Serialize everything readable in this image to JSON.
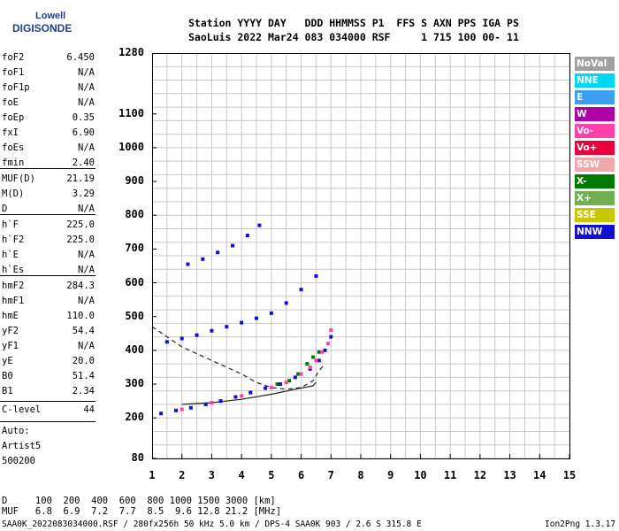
{
  "logo": {
    "line1": "Lowell",
    "line2": "DIGISONDE"
  },
  "header": {
    "line1": "Station YYYY DAY   DDD HHMMSS P1  FFS S AXN PPS IGA PS",
    "line2": "SaoLuis 2022 Mar24 083 034000 RSF     1 715 100 00- 11"
  },
  "params": [
    {
      "label": "foF2",
      "value": "6.450"
    },
    {
      "label": "foF1",
      "value": "N/A"
    },
    {
      "label": "foF1p",
      "value": "N/A"
    },
    {
      "label": "foE",
      "value": "N/A"
    },
    {
      "label": "foEp",
      "value": "0.35"
    },
    {
      "label": "fxI",
      "value": "6.90"
    },
    {
      "label": "foEs",
      "value": "N/A"
    },
    {
      "label": "fmin",
      "value": "2.40"
    },
    {
      "label": "MUF(D)",
      "value": "21.19"
    },
    {
      "label": "M(D)",
      "value": "3.29"
    },
    {
      "label": "D",
      "value": "N/A"
    },
    {
      "label": "h`F",
      "value": "225.0"
    },
    {
      "label": "h`F2",
      "value": "225.0"
    },
    {
      "label": "h`E",
      "value": "N/A"
    },
    {
      "label": "h`Es",
      "value": "N/A"
    },
    {
      "label": "hmF2",
      "value": "284.3"
    },
    {
      "label": "hmF1",
      "value": "N/A"
    },
    {
      "label": "hmE",
      "value": "110.0"
    },
    {
      "label": "yF2",
      "value": "54.4"
    },
    {
      "label": "yF1",
      "value": "N/A"
    },
    {
      "label": "yE",
      "value": "20.0"
    },
    {
      "label": "B0",
      "value": "51.4"
    },
    {
      "label": "B1",
      "value": "2.34"
    },
    {
      "label": "C-level",
      "value": "44"
    }
  ],
  "autoscale": {
    "line1": "Auto:",
    "line2": "Artist5",
    "line3": "500200"
  },
  "legend": [
    {
      "label": "NoVal",
      "color": "#a0a0a0"
    },
    {
      "label": "NNE",
      "color": "#00d8f0"
    },
    {
      "label": "E",
      "color": "#3aa0f0"
    },
    {
      "label": "W",
      "color": "#b000a8"
    },
    {
      "label": "Vo-",
      "color": "#ff40a8"
    },
    {
      "label": "Vo+",
      "color": "#e8003a"
    },
    {
      "label": "SSW",
      "color": "#f0a8a8"
    },
    {
      "label": "X-",
      "color": "#007a00"
    },
    {
      "label": "X+",
      "color": "#70b050"
    },
    {
      "label": "SSE",
      "color": "#c8c800"
    },
    {
      "label": "NNW",
      "color": "#1010d0"
    }
  ],
  "mufTable": {
    "line1": "D     100  200  400  600  800 1000 1500 3000 [km]",
    "line2": "MUF   6.8  6.9  7.2  7.7  8.5  9.6 12.8 21.2 [MHz]"
  },
  "footer": "SAA0K_2022083034000.RSF / 280fx256h 50 kHz 5.0 km / DPS-4 SAA0K 903 / 2.6 S 315.8 E",
  "version": "Ion2Png 1.3.17",
  "chart_data": {
    "type": "scatter",
    "xlabel": "",
    "ylabel": "",
    "xlim": [
      1,
      15
    ],
    "ylim": [
      80,
      1280
    ],
    "xticks": [
      1,
      2,
      3,
      4,
      5,
      6,
      7,
      8,
      9,
      10,
      11,
      12,
      13,
      14,
      15
    ],
    "yticks": [
      80,
      200,
      300,
      400,
      500,
      600,
      700,
      800,
      900,
      1000,
      1100,
      1280
    ],
    "series": [
      {
        "name": "X-",
        "color": "#007a00",
        "points": [
          [
            5.2,
            300
          ],
          [
            5.6,
            310
          ],
          [
            5.9,
            330
          ],
          [
            6.2,
            360
          ],
          [
            6.4,
            380
          ],
          [
            6.6,
            395
          ]
        ]
      },
      {
        "name": "NNW",
        "color": "#1010d0",
        "points": [
          [
            1.3,
            213
          ],
          [
            1.8,
            222
          ],
          [
            2.3,
            230
          ],
          [
            2.8,
            240
          ],
          [
            3.3,
            250
          ],
          [
            3.8,
            262
          ],
          [
            4.3,
            275
          ],
          [
            4.8,
            288
          ],
          [
            5.3,
            300
          ],
          [
            5.8,
            320
          ],
          [
            6.3,
            345
          ],
          [
            6.6,
            370
          ],
          [
            6.8,
            400
          ],
          [
            7.0,
            440
          ],
          [
            1.5,
            425
          ],
          [
            2.0,
            435
          ],
          [
            2.5,
            445
          ],
          [
            3.0,
            458
          ],
          [
            3.5,
            470
          ],
          [
            4.0,
            482
          ],
          [
            4.5,
            495
          ],
          [
            5.0,
            510
          ],
          [
            5.5,
            540
          ],
          [
            6.0,
            580
          ],
          [
            6.5,
            620
          ],
          [
            2.2,
            655
          ],
          [
            2.7,
            670
          ],
          [
            3.2,
            690
          ],
          [
            3.7,
            710
          ],
          [
            4.2,
            740
          ],
          [
            4.6,
            770
          ]
        ]
      },
      {
        "name": "Vo-",
        "color": "#ff40a8",
        "points": [
          [
            2.0,
            225
          ],
          [
            3.0,
            245
          ],
          [
            4.0,
            265
          ],
          [
            5.0,
            290
          ],
          [
            5.5,
            305
          ],
          [
            6.0,
            330
          ],
          [
            6.3,
            350
          ],
          [
            6.5,
            370
          ],
          [
            6.7,
            395
          ],
          [
            6.9,
            420
          ],
          [
            7.0,
            460
          ]
        ]
      }
    ],
    "curves": [
      {
        "name": "N(h) profile",
        "points": [
          [
            1.0,
            470
          ],
          [
            1.5,
            440
          ],
          [
            2.0,
            410
          ],
          [
            2.5,
            390
          ],
          [
            3.0,
            370
          ],
          [
            3.5,
            350
          ],
          [
            4.0,
            330
          ],
          [
            4.5,
            305
          ],
          [
            5.0,
            290
          ],
          [
            5.5,
            285
          ],
          [
            6.0,
            290
          ],
          [
            6.4,
            310
          ],
          [
            6.6,
            340
          ],
          [
            6.8,
            360
          ]
        ]
      },
      {
        "name": "model trace",
        "points": [
          [
            2.0,
            240
          ],
          [
            3.0,
            245
          ],
          [
            4.0,
            255
          ],
          [
            5.0,
            270
          ],
          [
            5.8,
            285
          ],
          [
            6.4,
            295
          ],
          [
            6.5,
            305
          ]
        ]
      }
    ]
  }
}
